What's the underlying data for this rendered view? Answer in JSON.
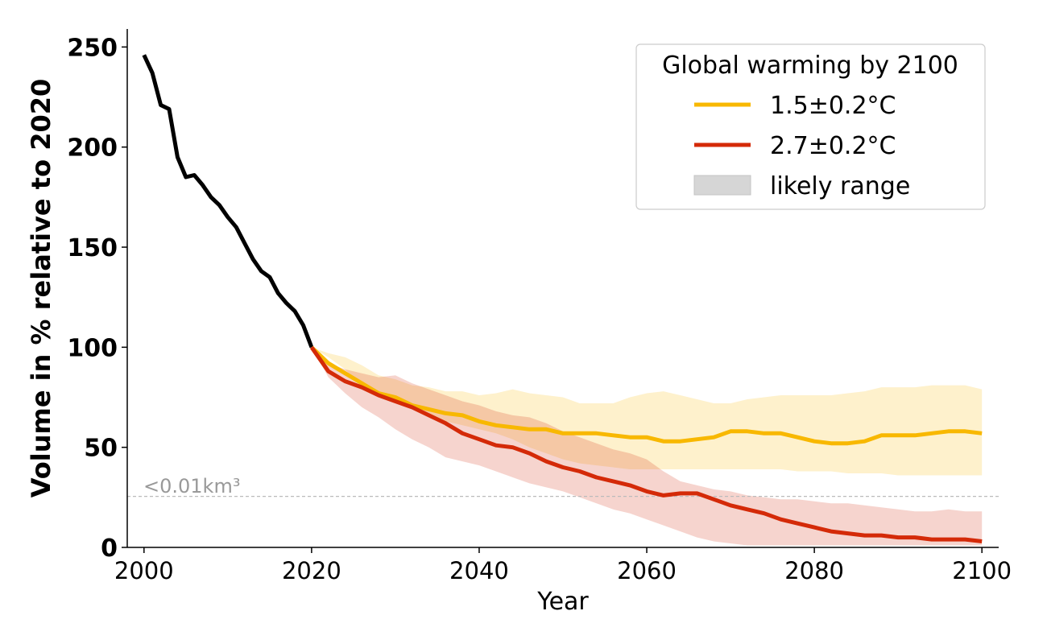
{
  "chart_data": {
    "type": "line",
    "title": "",
    "xlabel": "Year",
    "ylabel": "Volume in % relative to 2020",
    "xlim": [
      1998,
      2102
    ],
    "ylim": [
      0,
      259
    ],
    "xticks": [
      2000,
      2020,
      2040,
      2060,
      2080,
      2100
    ],
    "yticks": [
      0,
      50,
      100,
      150,
      200,
      250
    ],
    "grid": false,
    "threshold": {
      "value": 25.5,
      "label": "<0.01km³",
      "color": "#bbbbbb"
    },
    "legend": {
      "title": "Global warming by 2100",
      "position": "top-right",
      "entries": [
        {
          "label": "1.5±0.2°C",
          "kind": "line",
          "color": "#f8b800"
        },
        {
          "label": "2.7±0.2°C",
          "kind": "line",
          "color": "#d42a08"
        },
        {
          "label": "likely range",
          "kind": "patch",
          "color": "#d6d6d6"
        }
      ]
    },
    "series": [
      {
        "name": "historical",
        "color": "#000000",
        "x": [
          2000,
          2001,
          2002,
          2003,
          2004,
          2005,
          2006,
          2007,
          2008,
          2009,
          2010,
          2011,
          2012,
          2013,
          2014,
          2015,
          2016,
          2017,
          2018,
          2019,
          2020
        ],
        "y": [
          246,
          237,
          221,
          219,
          195,
          185,
          186,
          181,
          175,
          171,
          165,
          160,
          152,
          144,
          138,
          135,
          127,
          122,
          118,
          111,
          100
        ]
      },
      {
        "name": "1.5±0.2°C",
        "color": "#f8b800",
        "x": [
          2020,
          2022,
          2024,
          2026,
          2028,
          2030,
          2032,
          2034,
          2036,
          2038,
          2040,
          2042,
          2044,
          2046,
          2048,
          2050,
          2052,
          2054,
          2056,
          2058,
          2060,
          2062,
          2064,
          2066,
          2068,
          2070,
          2072,
          2074,
          2076,
          2078,
          2080,
          2082,
          2084,
          2086,
          2088,
          2090,
          2092,
          2094,
          2096,
          2098,
          2100
        ],
        "y": [
          100,
          92,
          87,
          82,
          77,
          75,
          71,
          69,
          67,
          66,
          63,
          61,
          60,
          59,
          59,
          57,
          57,
          57,
          56,
          55,
          55,
          53,
          53,
          54,
          55,
          58,
          58,
          57,
          57,
          55,
          53,
          52,
          52,
          53,
          56,
          56,
          56,
          57,
          58,
          58,
          57
        ],
        "range_low": [
          100,
          95,
          89,
          80,
          76,
          72,
          69,
          66,
          63,
          61,
          59,
          57,
          54,
          50,
          47,
          44,
          42,
          41,
          40,
          39,
          39,
          39,
          39,
          39,
          39,
          39,
          39,
          39,
          39,
          38,
          38,
          38,
          37,
          37,
          37,
          36,
          36,
          36,
          36,
          36,
          36
        ],
        "range_high": [
          100,
          97,
          95,
          91,
          86,
          84,
          81,
          80,
          78,
          78,
          76,
          77,
          79,
          77,
          76,
          75,
          72,
          72,
          72,
          75,
          77,
          78,
          76,
          74,
          72,
          72,
          74,
          75,
          76,
          76,
          76,
          76,
          77,
          78,
          80,
          80,
          80,
          81,
          81,
          81,
          79
        ]
      },
      {
        "name": "2.7±0.2°C",
        "color": "#d42a08",
        "x": [
          2020,
          2022,
          2024,
          2026,
          2028,
          2030,
          2032,
          2034,
          2036,
          2038,
          2040,
          2042,
          2044,
          2046,
          2048,
          2050,
          2052,
          2054,
          2056,
          2058,
          2060,
          2062,
          2064,
          2066,
          2068,
          2070,
          2072,
          2074,
          2076,
          2078,
          2080,
          2082,
          2084,
          2086,
          2088,
          2090,
          2092,
          2094,
          2096,
          2098,
          2100
        ],
        "y": [
          100,
          88,
          83,
          80,
          76,
          73,
          70,
          66,
          62,
          57,
          54,
          51,
          50,
          47,
          43,
          40,
          38,
          35,
          33,
          31,
          28,
          26,
          27,
          27,
          24,
          21,
          19,
          17,
          14,
          12,
          10,
          8,
          7,
          6,
          6,
          5,
          5,
          4,
          4,
          4,
          3
        ],
        "range_low": [
          100,
          85,
          77,
          70,
          65,
          59,
          54,
          50,
          45,
          43,
          41,
          38,
          35,
          32,
          30,
          28,
          25,
          22,
          19,
          17,
          14,
          11,
          8,
          5,
          3,
          2,
          1,
          1,
          1,
          1,
          1,
          1,
          1,
          1,
          1,
          1,
          1,
          1,
          1,
          1,
          1
        ],
        "range_high": [
          100,
          92,
          89,
          87,
          85,
          86,
          82,
          79,
          76,
          73,
          71,
          68,
          66,
          65,
          62,
          58,
          55,
          52,
          49,
          47,
          44,
          38,
          33,
          31,
          29,
          28,
          26,
          25,
          24,
          24,
          23,
          22,
          22,
          21,
          20,
          19,
          18,
          18,
          19,
          18,
          18
        ]
      }
    ]
  }
}
